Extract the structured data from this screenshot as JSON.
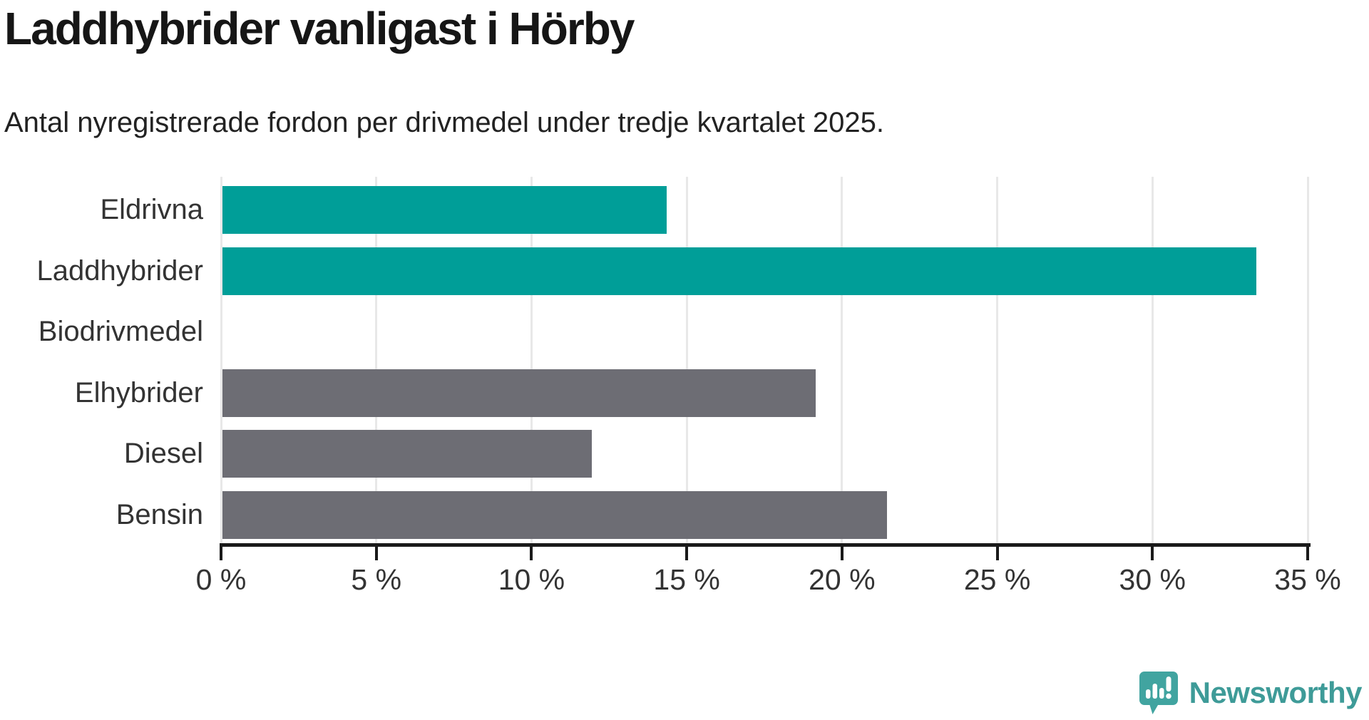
{
  "chart_data": {
    "type": "bar",
    "orientation": "horizontal",
    "title": "Laddhybrider vanligast i Hörby",
    "subtitle": "Antal nyregistrerade fordon per drivmedel under tredje kvartalet 2025.",
    "categories": [
      "Eldrivna",
      "Laddhybrider",
      "Biodrivmedel",
      "Elhybrider",
      "Diesel",
      "Bensin"
    ],
    "values": [
      14.3,
      33.3,
      0,
      19.1,
      11.9,
      21.4
    ],
    "bar_colors": [
      "#009e98",
      "#009e98",
      "#6d6d74",
      "#6d6d74",
      "#6d6d74",
      "#6d6d74"
    ],
    "unit": "%",
    "xlim": [
      0,
      35
    ],
    "x_ticks": [
      0,
      5,
      10,
      15,
      20,
      25,
      30,
      35
    ],
    "x_tick_labels": [
      "0 %",
      "5 %",
      "10 %",
      "15 %",
      "20 %",
      "25 %",
      "30 %",
      "35 %"
    ],
    "grid": "vertical",
    "legend": "none"
  },
  "colors": {
    "highlight": "#009e98",
    "default_bar": "#6d6d74",
    "gridline": "#e8e8e8",
    "axis": "#1a1a1a",
    "title_text": "#161616",
    "label_text": "#333333",
    "brand_teal": "#3e9b98",
    "logo_mark": "#41a4a0"
  },
  "footer": {
    "brand": "Newsworthy"
  }
}
